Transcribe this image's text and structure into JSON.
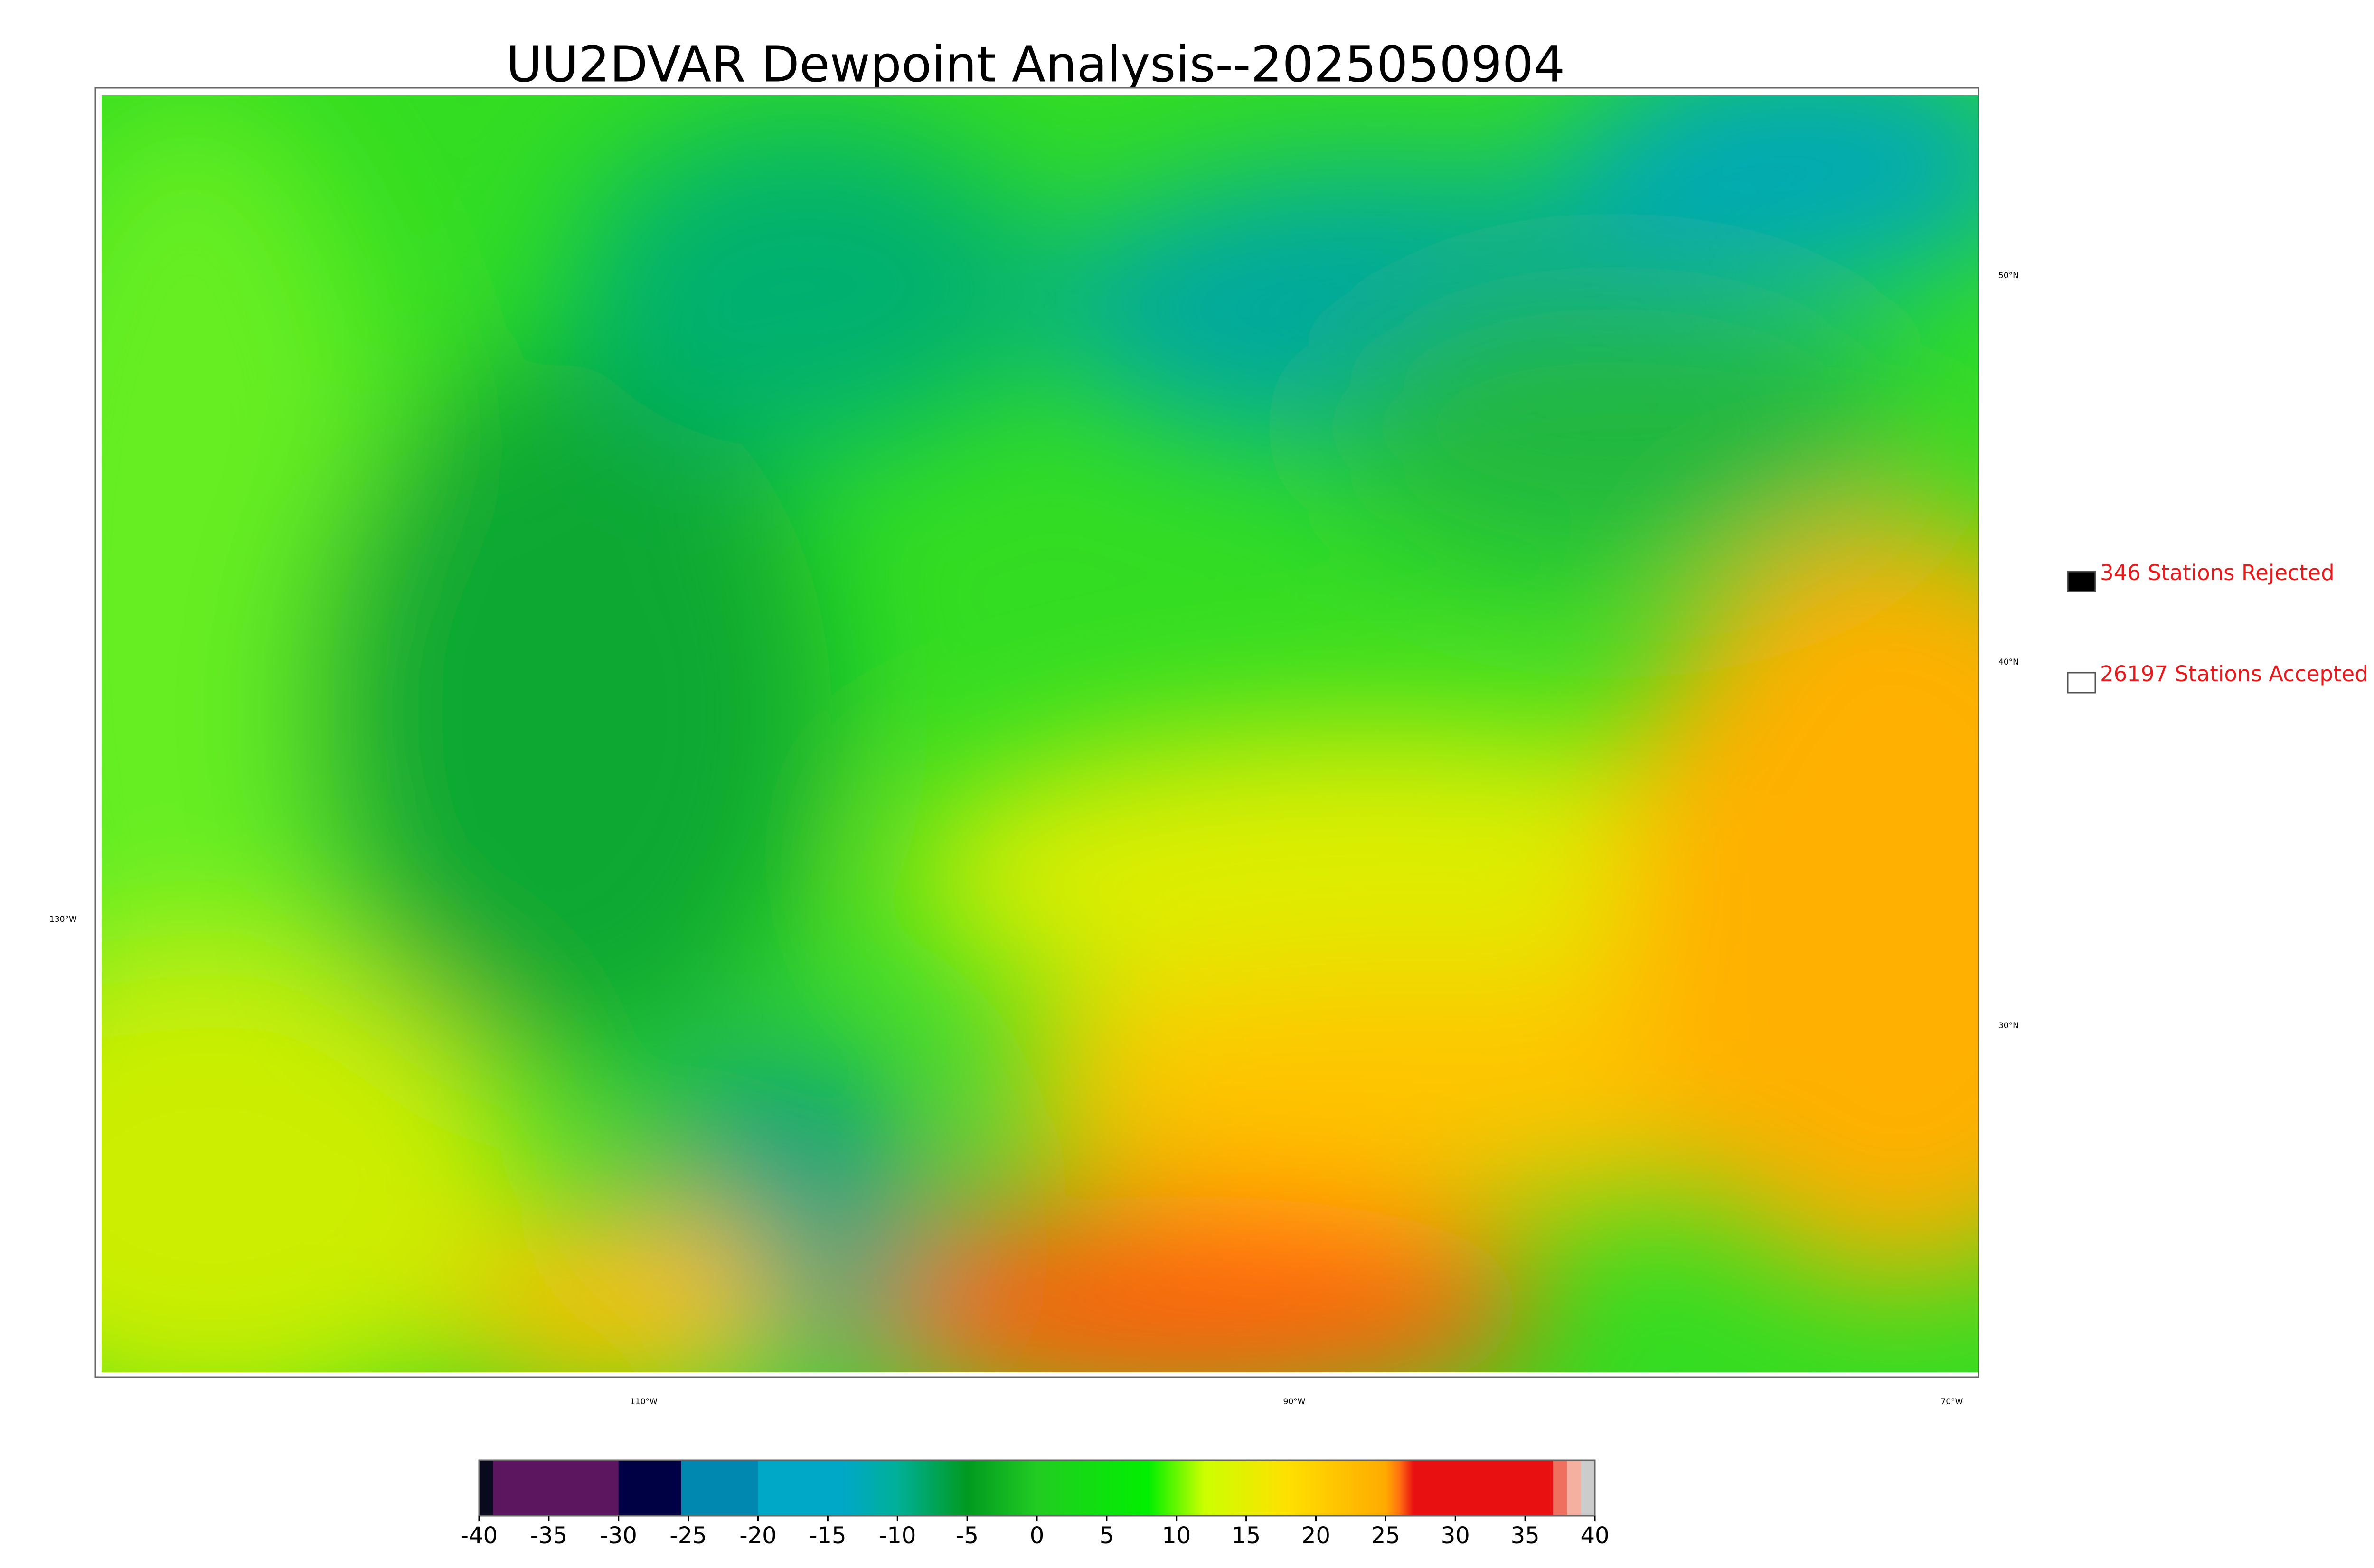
{
  "title": "UU2DVAR Dewpoint Analysis--2025050904",
  "legend": [
    {
      "label": "346 Stations Rejected",
      "color": "#000000"
    },
    {
      "label": "26197 Stations Accepted",
      "color": "#ffffff"
    }
  ],
  "colorbar": {
    "range": [
      -40,
      40
    ],
    "ticks": [
      -40,
      -35,
      -30,
      -25,
      -20,
      -15,
      -10,
      -5,
      0,
      5,
      10,
      15,
      20,
      25,
      30,
      35,
      40
    ],
    "stops": [
      {
        "value": -40,
        "color": "#0a0a1e"
      },
      {
        "value": -39,
        "color": "#0a0a1e"
      },
      {
        "value": -39,
        "color": "#5c1660"
      },
      {
        "value": -30,
        "color": "#5c1660"
      },
      {
        "value": -30,
        "color": "#000044"
      },
      {
        "value": -25.5,
        "color": "#000044"
      },
      {
        "value": -25.5,
        "color": "#0088b0"
      },
      {
        "value": -20,
        "color": "#0088b0"
      },
      {
        "value": -20,
        "color": "#00a8c8"
      },
      {
        "value": -14,
        "color": "#00a8c8"
      },
      {
        "value": -10,
        "color": "#00b098"
      },
      {
        "value": -5,
        "color": "#009a20"
      },
      {
        "value": 0,
        "color": "#22cc22"
      },
      {
        "value": 8,
        "color": "#00f000"
      },
      {
        "value": 12,
        "color": "#ccff00"
      },
      {
        "value": 18,
        "color": "#ffe000"
      },
      {
        "value": 25,
        "color": "#ffaa00"
      },
      {
        "value": 26,
        "color": "#ff7010"
      },
      {
        "value": 27,
        "color": "#e81010"
      },
      {
        "value": 37,
        "color": "#e81010"
      },
      {
        "value": 37,
        "color": "#f07060"
      },
      {
        "value": 38,
        "color": "#f07060"
      },
      {
        "value": 38,
        "color": "#f5b0a0"
      },
      {
        "value": 39,
        "color": "#f5b0a0"
      },
      {
        "value": 39,
        "color": "#cccccc"
      },
      {
        "value": 40,
        "color": "#cccccc"
      }
    ]
  },
  "lat_labels": [
    "50°N",
    "40°N",
    "30°N"
  ],
  "lon_labels": [
    "130°W",
    "110°W",
    "90°W",
    "70°W"
  ]
}
